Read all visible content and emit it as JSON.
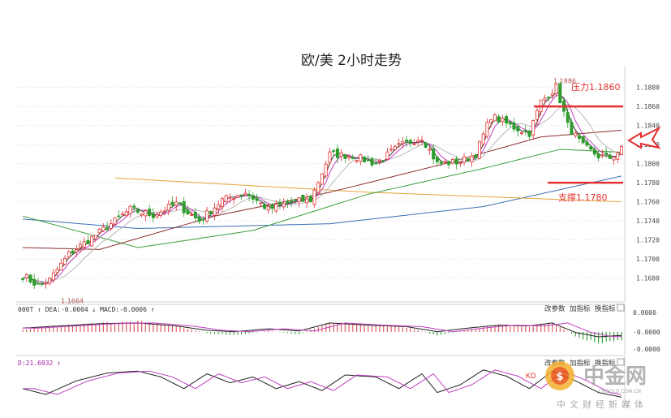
{
  "chart_data": [
    {
      "type": "candlestick",
      "title": "欧/美 2小时走势",
      "ylim": [
        1.1655,
        1.1895
      ],
      "y_ticks": [
        1.168,
        1.17,
        1.172,
        1.174,
        1.176,
        1.178,
        1.18,
        1.182,
        1.184,
        1.186,
        1.188
      ],
      "y_tick_labels": [
        "1.1680",
        "1.1700",
        "1.1720",
        "1.1740",
        "1.1760",
        "1.1780",
        "1.1800",
        "1.1820",
        "1.1840",
        "1.1860",
        "1.1880"
      ],
      "grid": true,
      "close_anchors": [
        [
          0,
          1.1683
        ],
        [
          4,
          1.1672
        ],
        [
          7,
          1.1678
        ],
        [
          12,
          1.1705
        ],
        [
          20,
          1.1728
        ],
        [
          28,
          1.1752
        ],
        [
          34,
          1.1746
        ],
        [
          40,
          1.1758
        ],
        [
          46,
          1.174
        ],
        [
          52,
          1.1762
        ],
        [
          58,
          1.177
        ],
        [
          64,
          1.1752
        ],
        [
          70,
          1.176
        ],
        [
          75,
          1.1762
        ],
        [
          80,
          1.181
        ],
        [
          86,
          1.1808
        ],
        [
          92,
          1.18
        ],
        [
          98,
          1.1818
        ],
        [
          104,
          1.1828
        ],
        [
          108,
          1.18
        ],
        [
          114,
          1.1802
        ],
        [
          118,
          1.181
        ],
        [
          122,
          1.185
        ],
        [
          128,
          1.1838
        ],
        [
          132,
          1.1832
        ],
        [
          135,
          1.1865
        ],
        [
          139,
          1.188
        ],
        [
          142,
          1.184
        ],
        [
          146,
          1.1818
        ],
        [
          150,
          1.1808
        ],
        [
          153,
          1.1806
        ],
        [
          156,
          1.1815
        ]
      ],
      "series": [
        {
          "name": "",
          "color": "#3a6fb0",
          "anchors": [
            [
              0,
              1.1742
            ],
            [
              30,
              1.1732
            ],
            [
              80,
              1.1737
            ],
            [
              120,
              1.1755
            ],
            [
              156,
              1.1787
            ]
          ]
        },
        {
          "name": "",
          "color": "#e3a33a",
          "anchors": [
            [
              24,
              1.1785
            ],
            [
              90,
              1.177
            ],
            [
              156,
              1.176
            ]
          ]
        },
        {
          "name": "",
          "color": "#3e9e3e",
          "anchors": [
            [
              0,
              1.1745
            ],
            [
              30,
              1.1712
            ],
            [
              60,
              1.173
            ],
            [
              90,
              1.1768
            ],
            [
              120,
              1.1795
            ],
            [
              140,
              1.1815
            ],
            [
              156,
              1.1812
            ]
          ]
        },
        {
          "name": "",
          "color": "#8b2c2c",
          "anchors": [
            [
              0,
              1.1712
            ],
            [
              20,
              1.171
            ],
            [
              50,
              1.1745
            ],
            [
              80,
              1.177
            ],
            [
              110,
              1.18
            ],
            [
              135,
              1.1828
            ],
            [
              156,
              1.1835
            ]
          ]
        }
      ],
      "annotations": [
        {
          "text": "压力1.1860",
          "y": 1.186,
          "type": "resistance",
          "color": "#e53030"
        },
        {
          "text": "支撑1.1780",
          "y": 1.178,
          "type": "support",
          "color": "#e53030"
        },
        {
          "text": "1.1664",
          "y": 1.1664,
          "type": "low"
        },
        {
          "text": "1.1886",
          "y": 1.1886,
          "type": "high"
        }
      ]
    },
    {
      "type": "bar",
      "indicator": "MACD",
      "legend_text": "DIFF:0.0004  DEA:-0.0004  MACD:-0.0006",
      "legend_visible": "000T ↑ DEA:-0.0004 ↓ MACD:-0.0006 ↑",
      "y_tick_labels": [
        "0.0000",
        "-0.0000",
        "-0.0000"
      ],
      "buttons": [
        "改参数",
        "加指标",
        "换指标"
      ],
      "histogram_anchors": [
        [
          0,
          0.2
        ],
        [
          10,
          0.5
        ],
        [
          20,
          0.8
        ],
        [
          30,
          0.9
        ],
        [
          40,
          0.5
        ],
        [
          48,
          -0.1
        ],
        [
          55,
          -0.3
        ],
        [
          64,
          0.1
        ],
        [
          72,
          -0.2
        ],
        [
          80,
          0.9
        ],
        [
          90,
          0.6
        ],
        [
          100,
          0.4
        ],
        [
          108,
          -0.3
        ],
        [
          116,
          0.2
        ],
        [
          124,
          0.6
        ],
        [
          132,
          0.5
        ],
        [
          138,
          0.9
        ],
        [
          144,
          -0.4
        ],
        [
          150,
          -1.0
        ],
        [
          156,
          -0.8
        ]
      ]
    },
    {
      "type": "line",
      "indicator": "KD",
      "legend_visible": "D:21.6932 ↑",
      "buttons": [
        "改参数",
        "加指标",
        "换指标"
      ],
      "k_anchors": [
        [
          0,
          40
        ],
        [
          6,
          25
        ],
        [
          14,
          60
        ],
        [
          22,
          80
        ],
        [
          30,
          85
        ],
        [
          36,
          70
        ],
        [
          42,
          40
        ],
        [
          48,
          78
        ],
        [
          54,
          55
        ],
        [
          60,
          70
        ],
        [
          66,
          40
        ],
        [
          72,
          58
        ],
        [
          78,
          35
        ],
        [
          84,
          75
        ],
        [
          92,
          70
        ],
        [
          98,
          40
        ],
        [
          104,
          78
        ],
        [
          108,
          30
        ],
        [
          114,
          50
        ],
        [
          120,
          88
        ],
        [
          126,
          72
        ],
        [
          132,
          40
        ],
        [
          138,
          85
        ],
        [
          144,
          60
        ],
        [
          150,
          30
        ],
        [
          156,
          18
        ]
      ]
    }
  ],
  "watermark": {
    "text": "中金网",
    "site": "CNGOLD.COM.CN",
    "slogan": "中文财经新媒体"
  }
}
